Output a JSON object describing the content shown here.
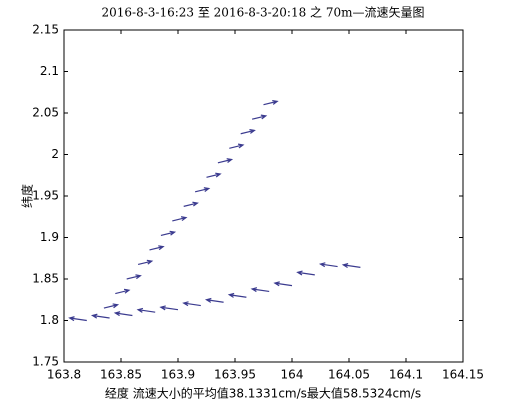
{
  "chart_data": {
    "type": "quiver",
    "title": "2016-8-3-16:23 至 2016-8-3-20:18 之 70m—流速矢量图",
    "xlabel": "经度 流速大小的平均值38.1331cm/s最大值58.5324cm/s",
    "ylabel": "纬度",
    "xlim": [
      163.8,
      164.15
    ],
    "xticks": [
      163.8,
      163.85,
      163.9,
      163.95,
      164,
      164.05,
      164.1,
      164.15
    ],
    "ylim": [
      1.75,
      2.15
    ],
    "yticks": [
      1.75,
      1.8,
      1.85,
      1.9,
      1.95,
      2,
      2.05,
      2.1,
      2.15
    ],
    "series": [
      {
        "color": "#3b3b8f",
        "x": [
          163.835,
          163.845,
          163.855,
          163.865,
          163.875,
          163.885,
          163.895,
          163.905,
          163.915,
          163.925,
          163.935,
          163.945,
          163.955,
          163.965,
          163.975
        ],
        "y": [
          1.815,
          1.8325,
          1.85,
          1.8675,
          1.885,
          1.9025,
          1.92,
          1.9375,
          1.955,
          1.9725,
          1.99,
          2.0075,
          2.025,
          2.0425,
          2.06
        ],
        "u": [
          0.012,
          0.012,
          0.012,
          0.012,
          0.012,
          0.012,
          0.012,
          0.012,
          0.012,
          0.012,
          0.012,
          0.012,
          0.012,
          0.012,
          0.012
        ],
        "v": [
          0.004,
          0.004,
          0.004,
          0.004,
          0.004,
          0.004,
          0.004,
          0.004,
          0.004,
          0.004,
          0.004,
          0.004,
          0.004,
          0.004,
          0.004
        ]
      },
      {
        "color": "#3b3b8f",
        "x": [
          163.82,
          163.84,
          163.86,
          163.88,
          163.9,
          163.92,
          163.94,
          163.96,
          163.98,
          164,
          164.02,
          164.04,
          164.06
        ],
        "y": [
          1.8,
          1.803,
          1.806,
          1.81,
          1.813,
          1.818,
          1.822,
          1.828,
          1.835,
          1.842,
          1.855,
          1.865,
          1.864
        ],
        "u": [
          -0.015,
          -0.015,
          -0.015,
          -0.015,
          -0.015,
          -0.015,
          -0.015,
          -0.015,
          -0.015,
          -0.015,
          -0.015,
          -0.015,
          -0.015
        ],
        "v": [
          0.003,
          0.003,
          0.003,
          0.003,
          0.003,
          0.003,
          0.003,
          0.003,
          0.003,
          0.003,
          0.003,
          0.003,
          0.003
        ]
      }
    ]
  }
}
